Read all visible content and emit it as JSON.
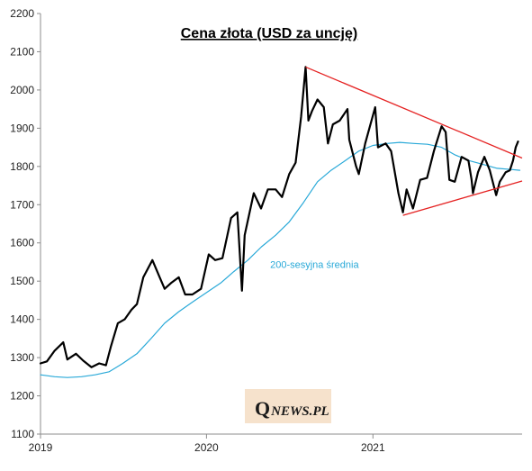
{
  "chart_data": {
    "type": "line",
    "title": "Cena złota (USD za uncję)",
    "xlabel": "",
    "ylabel": "",
    "x_range": [
      "2019-01-01",
      "2021-11-25"
    ],
    "ylim": [
      1100,
      2200
    ],
    "y_ticks": [
      1100,
      1200,
      1300,
      1400,
      1500,
      1600,
      1700,
      1800,
      1900,
      2000,
      2100,
      2200
    ],
    "x_ticks": [
      {
        "label": "2019",
        "date": "2019-01-01"
      },
      {
        "label": "2020",
        "date": "2020-01-01"
      },
      {
        "label": "2021",
        "date": "2021-01-01"
      }
    ],
    "grid": false,
    "series": [
      {
        "role": "price",
        "color": "#000000",
        "points": [
          [
            "2019-01-01",
            1285
          ],
          [
            "2019-01-15",
            1290
          ],
          [
            "2019-02-01",
            1318
          ],
          [
            "2019-02-20",
            1340
          ],
          [
            "2019-03-01",
            1295
          ],
          [
            "2019-03-20",
            1310
          ],
          [
            "2019-04-05",
            1292
          ],
          [
            "2019-04-23",
            1275
          ],
          [
            "2019-05-10",
            1285
          ],
          [
            "2019-05-25",
            1280
          ],
          [
            "2019-06-05",
            1330
          ],
          [
            "2019-06-20",
            1390
          ],
          [
            "2019-07-05",
            1400
          ],
          [
            "2019-07-20",
            1425
          ],
          [
            "2019-08-01",
            1440
          ],
          [
            "2019-08-15",
            1510
          ],
          [
            "2019-09-04",
            1555
          ],
          [
            "2019-09-20",
            1510
          ],
          [
            "2019-10-01",
            1480
          ],
          [
            "2019-10-15",
            1495
          ],
          [
            "2019-11-01",
            1510
          ],
          [
            "2019-11-15",
            1465
          ],
          [
            "2019-12-01",
            1465
          ],
          [
            "2019-12-20",
            1480
          ],
          [
            "2020-01-06",
            1570
          ],
          [
            "2020-01-20",
            1555
          ],
          [
            "2020-02-05",
            1560
          ],
          [
            "2020-02-24",
            1665
          ],
          [
            "2020-03-09",
            1680
          ],
          [
            "2020-03-19",
            1475
          ],
          [
            "2020-03-25",
            1620
          ],
          [
            "2020-04-14",
            1730
          ],
          [
            "2020-04-30",
            1690
          ],
          [
            "2020-05-15",
            1740
          ],
          [
            "2020-06-01",
            1740
          ],
          [
            "2020-06-15",
            1720
          ],
          [
            "2020-07-01",
            1780
          ],
          [
            "2020-07-15",
            1810
          ],
          [
            "2020-07-27",
            1930
          ],
          [
            "2020-08-06",
            2060
          ],
          [
            "2020-08-12",
            1920
          ],
          [
            "2020-08-20",
            1945
          ],
          [
            "2020-09-01",
            1975
          ],
          [
            "2020-09-15",
            1955
          ],
          [
            "2020-09-24",
            1860
          ],
          [
            "2020-10-05",
            1910
          ],
          [
            "2020-10-20",
            1920
          ],
          [
            "2020-11-06",
            1950
          ],
          [
            "2020-11-10",
            1870
          ],
          [
            "2020-11-25",
            1800
          ],
          [
            "2020-12-01",
            1780
          ],
          [
            "2020-12-15",
            1860
          ],
          [
            "2021-01-06",
            1955
          ],
          [
            "2021-01-12",
            1850
          ],
          [
            "2021-01-29",
            1860
          ],
          [
            "2021-02-10",
            1840
          ],
          [
            "2021-02-26",
            1730
          ],
          [
            "2021-03-08",
            1680
          ],
          [
            "2021-03-16",
            1740
          ],
          [
            "2021-03-30",
            1690
          ],
          [
            "2021-04-15",
            1765
          ],
          [
            "2021-04-30",
            1770
          ],
          [
            "2021-05-15",
            1840
          ],
          [
            "2021-06-01",
            1905
          ],
          [
            "2021-06-10",
            1890
          ],
          [
            "2021-06-18",
            1765
          ],
          [
            "2021-06-30",
            1760
          ],
          [
            "2021-07-15",
            1825
          ],
          [
            "2021-07-30",
            1815
          ],
          [
            "2021-08-06",
            1765
          ],
          [
            "2021-08-09",
            1730
          ],
          [
            "2021-08-20",
            1785
          ],
          [
            "2021-09-03",
            1825
          ],
          [
            "2021-09-15",
            1790
          ],
          [
            "2021-09-29",
            1725
          ],
          [
            "2021-10-07",
            1760
          ],
          [
            "2021-10-20",
            1785
          ],
          [
            "2021-10-29",
            1790
          ],
          [
            "2021-11-05",
            1815
          ],
          [
            "2021-11-11",
            1850
          ],
          [
            "2021-11-16",
            1865
          ]
        ]
      },
      {
        "role": "moving-average",
        "label": "200-sesyjna średnia",
        "color": "#29a9d8",
        "points": [
          [
            "2019-01-01",
            1255
          ],
          [
            "2019-02-01",
            1250
          ],
          [
            "2019-03-01",
            1248
          ],
          [
            "2019-04-01",
            1250
          ],
          [
            "2019-05-01",
            1255
          ],
          [
            "2019-06-01",
            1263
          ],
          [
            "2019-07-01",
            1285
          ],
          [
            "2019-08-01",
            1310
          ],
          [
            "2019-09-01",
            1350
          ],
          [
            "2019-10-01",
            1390
          ],
          [
            "2019-11-01",
            1420
          ],
          [
            "2019-12-01",
            1445
          ],
          [
            "2020-01-01",
            1470
          ],
          [
            "2020-02-01",
            1495
          ],
          [
            "2020-03-01",
            1525
          ],
          [
            "2020-04-01",
            1555
          ],
          [
            "2020-05-01",
            1590
          ],
          [
            "2020-06-01",
            1620
          ],
          [
            "2020-07-01",
            1655
          ],
          [
            "2020-08-01",
            1705
          ],
          [
            "2020-09-01",
            1760
          ],
          [
            "2020-10-01",
            1790
          ],
          [
            "2020-11-01",
            1815
          ],
          [
            "2020-12-01",
            1840
          ],
          [
            "2021-01-01",
            1855
          ],
          [
            "2021-02-01",
            1860
          ],
          [
            "2021-03-01",
            1863
          ],
          [
            "2021-04-01",
            1860
          ],
          [
            "2021-05-01",
            1858
          ],
          [
            "2021-06-01",
            1850
          ],
          [
            "2021-07-01",
            1830
          ],
          [
            "2021-08-01",
            1815
          ],
          [
            "2021-09-01",
            1805
          ],
          [
            "2021-10-01",
            1795
          ],
          [
            "2021-11-01",
            1792
          ],
          [
            "2021-11-20",
            1790
          ]
        ]
      }
    ],
    "trend_lines": [
      {
        "role": "upper",
        "color": "#e52222",
        "from": [
          "2020-08-06",
          2060
        ],
        "to": [
          "2021-11-25",
          1822
        ]
      },
      {
        "role": "lower",
        "color": "#e52222",
        "from": [
          "2021-03-08",
          1672
        ],
        "to": [
          "2021-11-25",
          1762
        ]
      }
    ],
    "annotations": [
      {
        "text": "200-sesyjna średnia",
        "color": "#29a9d8",
        "date": "2020-05-20",
        "value": 1535
      }
    ]
  },
  "watermark": {
    "q": "Q",
    "rest": "NEWS.PL"
  }
}
